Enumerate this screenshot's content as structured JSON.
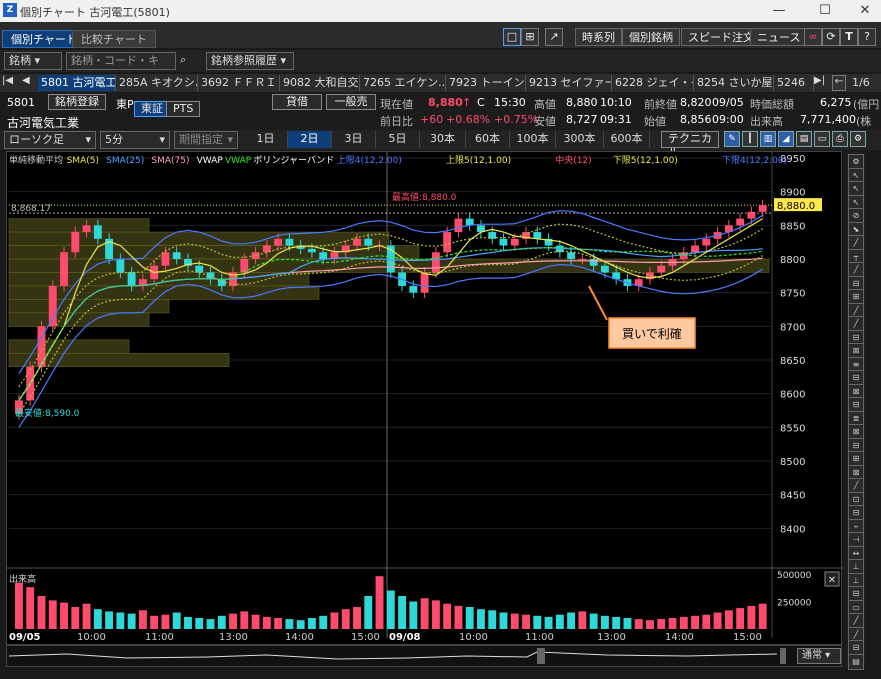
{
  "window": {
    "title": "個別チャート 古河電工(5801)",
    "minimize": "—",
    "maximize": "☐",
    "close": "✕"
  },
  "tabs": [
    {
      "label": "個別チャート"
    },
    {
      "label": "比較チャート"
    }
  ],
  "toolbar": {
    "buttons": [
      "時系列",
      "個別銘柄",
      "スピード注文",
      "ニュース"
    ],
    "icon_t": "T"
  },
  "search": {
    "type_select": "銘柄",
    "placeholder": "銘柄・コード・キー...",
    "history": "銘柄参照履歴"
  },
  "stocks": [
    "5801 古河電工",
    "285A キオクシ...",
    "3692 ＦＦＲＩ",
    "9082 大和自交",
    "7265 エイケン...",
    "7923 トーイン",
    "9213 セイファート",
    "6228 ジェイ・イ...",
    "8254 さいか屋",
    "5246"
  ],
  "page_indicator": "1/6",
  "info": {
    "code": "5801",
    "register": "銘柄登録",
    "market_prefix": "東P",
    "market": "東証",
    "pts": "PTS",
    "name": "古河電気工業",
    "margin": "貸借",
    "general": "一般売",
    "current_label": "現在値",
    "current": "8,880",
    "current_arrow": "↑",
    "current_flag": "C",
    "current_time": "15:30",
    "high_label": "高値",
    "high": "8,880",
    "high_time": "10:10",
    "prev_label": "前終値",
    "prev": "8,820",
    "prev_date": "09/05",
    "mcap_label": "時価総額",
    "mcap": "6,275",
    "mcap_unit": "(億円",
    "change_label": "前日比",
    "change": "+60",
    "change_pct": "+0.68%",
    "change_pct2": "+0.75%",
    "low_label": "安値",
    "low": "8,727",
    "low_time": "09:31",
    "open_label": "始値",
    "open": "8,856",
    "open_time": "09:00",
    "volume_label": "出来高",
    "volume": "7,771,400",
    "volume_unit": "(株"
  },
  "controls": {
    "chart_type": "ローソク足",
    "interval": "5分",
    "period": "期間指定",
    "periods": [
      "1日",
      "2日",
      "3日",
      "5日",
      "30本",
      "60本",
      "100本",
      "300本",
      "600本"
    ],
    "active_period": "2日",
    "technical": "テクニカル"
  },
  "legend": [
    {
      "text": "単純移動平均",
      "color": "#cccccc"
    },
    {
      "text": "SMA(5)",
      "color": "#e8e84a"
    },
    {
      "text": "SMA(25)",
      "color": "#4aa0ff"
    },
    {
      "text": "SMA(75)",
      "color": "#ff9fb0"
    },
    {
      "text": "VWAP",
      "color": "#ffffff"
    },
    {
      "text": "VWAP",
      "color": "#2ee82e"
    },
    {
      "text": "ボリンジャーバンド",
      "color": "#ffffff"
    },
    {
      "text": "上限4(12,2.00)",
      "color": "#4a7aff"
    },
    {
      "text": "上限5(12,1.00)",
      "color": "#e8e84a"
    },
    {
      "text": "中央(12)",
      "color": "#ff4b6e"
    },
    {
      "text": "下限5(12,1.00)",
      "color": "#e8e84a"
    },
    {
      "text": "下限4(12,2.00)",
      "color": "#4a7aff"
    }
  ],
  "annotations": {
    "high_marker": "最高値:8,880.0",
    "low_marker": "最安値:8,590.0",
    "prev_high_line": "8,868.17",
    "price_tag": "8,880.0",
    "callout": "買いで利確"
  },
  "chart_data": {
    "type": "candlestick",
    "ylim": [
      8350,
      8950
    ],
    "y_ticks": [
      8950,
      8900,
      8850,
      8800,
      8750,
      8700,
      8650,
      8600,
      8550,
      8500,
      8450,
      8400
    ],
    "x_labels": [
      "09/05",
      "10:00",
      "11:00",
      "13:00",
      "14:00",
      "15:00",
      "09/08",
      "10:00",
      "11:00",
      "13:00",
      "14:00",
      "15:00"
    ],
    "volume_ticks": [
      500000,
      250000
    ],
    "volume_label": "出来高",
    "close_series": [
      8590,
      8640,
      8700,
      8760,
      8810,
      8840,
      8850,
      8830,
      8800,
      8780,
      8760,
      8770,
      8790,
      8810,
      8800,
      8790,
      8780,
      8770,
      8760,
      8780,
      8800,
      8810,
      8820,
      8830,
      8820,
      8815,
      8810,
      8800,
      8810,
      8820,
      8830,
      8820,
      8820,
      8780,
      8760,
      8750,
      8780,
      8810,
      8840,
      8860,
      8850,
      8840,
      8830,
      8820,
      8830,
      8840,
      8830,
      8820,
      8810,
      8800,
      8800,
      8790,
      8780,
      8770,
      8760,
      8770,
      8780,
      8790,
      8800,
      8810,
      8820,
      8830,
      8840,
      8850,
      8860,
      8870,
      8880
    ],
    "volumes": [
      420000,
      380000,
      300000,
      260000,
      240000,
      200000,
      230000,
      180000,
      160000,
      150000,
      140000,
      170000,
      120000,
      130000,
      150000,
      110000,
      100000,
      90000,
      120000,
      140000,
      160000,
      130000,
      110000,
      100000,
      90000,
      80000,
      100000,
      120000,
      150000,
      180000,
      200000,
      300000,
      480000,
      350000,
      300000,
      250000,
      280000,
      260000,
      230000,
      210000,
      200000,
      180000,
      170000,
      150000,
      140000,
      130000,
      120000,
      110000,
      130000,
      150000,
      160000,
      140000,
      120000,
      110000,
      100000,
      90000,
      80000,
      90000,
      100000,
      110000,
      120000,
      130000,
      150000,
      170000,
      190000,
      210000,
      230000
    ]
  }
}
